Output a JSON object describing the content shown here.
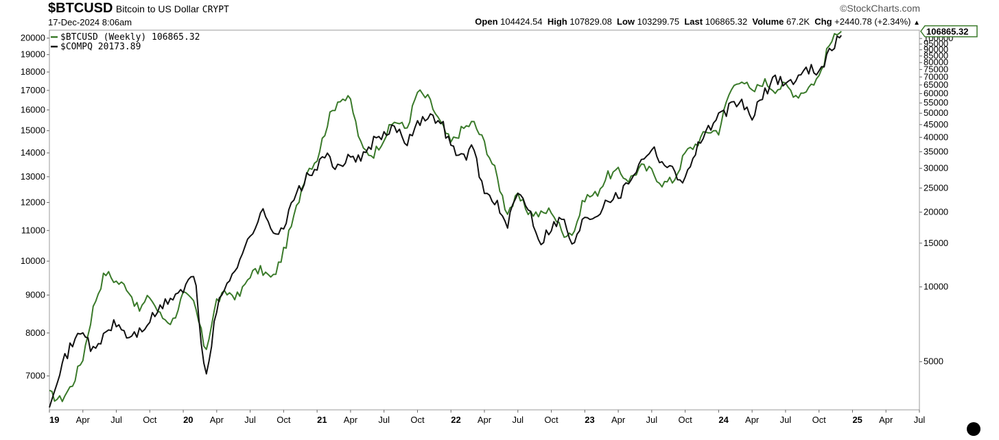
{
  "header": {
    "symbol": "$BTCUSD",
    "name": "Bitcoin to US Dollar",
    "exchange": "CRYPT",
    "date": "17-Dec-2024 8:06am",
    "brand": "©StockCharts.com",
    "open_label": "Open",
    "open_value": "104424.54",
    "high_label": "High",
    "high_value": "107829.08",
    "low_label": "Low",
    "low_value": "103299.75",
    "last_label": "Last",
    "last_value": "106865.32",
    "volume_label": "Volume",
    "volume_value": "67.2K",
    "chg_label": "Chg",
    "chg_value": "+2440.78 (+2.34%)",
    "chg_arrow": "▲"
  },
  "legend": [
    {
      "text": "$BTCUSD (Weekly) 106865.32",
      "color": "#3a7a2a"
    },
    {
      "text": "$COMPQ 20173.89",
      "color": "#111111"
    }
  ],
  "last_badge": "106865.32",
  "colors": {
    "btc": "#3a7a2a",
    "compq": "#111111",
    "axis": "#999999"
  },
  "chart_data": {
    "type": "line",
    "scale": "log",
    "grid": false,
    "legend_position": "top-left",
    "x_ticks": [
      "19",
      "Apr",
      "Jul",
      "Oct",
      "20",
      "Apr",
      "Jul",
      "Oct",
      "21",
      "Apr",
      "Jul",
      "Oct",
      "22",
      "Apr",
      "Jul",
      "Oct",
      "23",
      "Apr",
      "Jul",
      "Oct",
      "24",
      "Apr",
      "Jul",
      "Oct",
      "25",
      "Apr",
      "Jul"
    ],
    "x_range": [
      "2019-01",
      "2025-07"
    ],
    "left_axis": {
      "series": "$COMPQ",
      "ticks": [
        7000,
        8000,
        9000,
        10000,
        11000,
        12000,
        13000,
        14000,
        15000,
        16000,
        17000,
        18000,
        19000,
        20000
      ],
      "range": [
        6300,
        20500
      ]
    },
    "right_axis": {
      "series": "$BTCUSD",
      "ticks": [
        5000,
        10000,
        15000,
        20000,
        25000,
        30000,
        35000,
        40000,
        45000,
        50000,
        55000,
        60000,
        65000,
        70000,
        75000,
        80000,
        85000,
        90000,
        95000,
        100000
      ],
      "range": [
        3200,
        108000
      ]
    },
    "series": [
      {
        "name": "$BTCUSD (Weekly)",
        "axis": "right",
        "points": [
          [
            "2019-01",
            3700
          ],
          [
            "2019-02",
            3500
          ],
          [
            "2019-03",
            4000
          ],
          [
            "2019-04",
            5200
          ],
          [
            "2019-05",
            8500
          ],
          [
            "2019-06",
            11500
          ],
          [
            "2019-07",
            10500
          ],
          [
            "2019-08",
            10000
          ],
          [
            "2019-09",
            8000
          ],
          [
            "2019-10",
            9200
          ],
          [
            "2019-11",
            7600
          ],
          [
            "2019-12",
            7200
          ],
          [
            "2020-01",
            9300
          ],
          [
            "2020-02",
            8600
          ],
          [
            "2020-03",
            5500
          ],
          [
            "2020-04",
            8800
          ],
          [
            "2020-05",
            9500
          ],
          [
            "2020-06",
            9100
          ],
          [
            "2020-07",
            11300
          ],
          [
            "2020-08",
            11700
          ],
          [
            "2020-09",
            10700
          ],
          [
            "2020-10",
            13800
          ],
          [
            "2020-11",
            19500
          ],
          [
            "2020-12",
            29000
          ],
          [
            "2021-01",
            33000
          ],
          [
            "2021-02",
            47000
          ],
          [
            "2021-03",
            58000
          ],
          [
            "2021-04",
            56000
          ],
          [
            "2021-05",
            36000
          ],
          [
            "2021-06",
            34000
          ],
          [
            "2021-07",
            40000
          ],
          [
            "2021-08",
            47000
          ],
          [
            "2021-09",
            43000
          ],
          [
            "2021-10",
            61000
          ],
          [
            "2021-11",
            57000
          ],
          [
            "2021-12",
            46000
          ],
          [
            "2022-01",
            38000
          ],
          [
            "2022-02",
            43000
          ],
          [
            "2022-03",
            46000
          ],
          [
            "2022-04",
            38000
          ],
          [
            "2022-05",
            29000
          ],
          [
            "2022-06",
            20000
          ],
          [
            "2022-07",
            23000
          ],
          [
            "2022-08",
            20000
          ],
          [
            "2022-09",
            19500
          ],
          [
            "2022-10",
            20500
          ],
          [
            "2022-11",
            16500
          ],
          [
            "2022-12",
            16600
          ],
          [
            "2023-01",
            23000
          ],
          [
            "2023-02",
            23500
          ],
          [
            "2023-03",
            28000
          ],
          [
            "2023-04",
            29000
          ],
          [
            "2023-05",
            27000
          ],
          [
            "2023-06",
            30400
          ],
          [
            "2023-07",
            29200
          ],
          [
            "2023-08",
            26000
          ],
          [
            "2023-09",
            27000
          ],
          [
            "2023-10",
            34500
          ],
          [
            "2023-11",
            37700
          ],
          [
            "2023-12",
            42500
          ],
          [
            "2024-01",
            42500
          ],
          [
            "2024-02",
            61000
          ],
          [
            "2024-03",
            70000
          ],
          [
            "2024-04",
            60000
          ],
          [
            "2024-05",
            67500
          ],
          [
            "2024-06",
            62700
          ],
          [
            "2024-07",
            64600
          ],
          [
            "2024-08",
            59000
          ],
          [
            "2024-09",
            63300
          ],
          [
            "2024-10",
            70200
          ],
          [
            "2024-11",
            96400
          ],
          [
            "2024-12",
            106865
          ]
        ]
      },
      {
        "name": "$COMPQ",
        "axis": "left",
        "points": [
          [
            "2019-01",
            6450
          ],
          [
            "2019-02",
            7200
          ],
          [
            "2019-03",
            7700
          ],
          [
            "2019-04",
            8100
          ],
          [
            "2019-05",
            7500
          ],
          [
            "2019-06",
            8000
          ],
          [
            "2019-07",
            8250
          ],
          [
            "2019-08",
            7900
          ],
          [
            "2019-09",
            8000
          ],
          [
            "2019-10",
            8300
          ],
          [
            "2019-11",
            8650
          ],
          [
            "2019-12",
            8950
          ],
          [
            "2020-01",
            9150
          ],
          [
            "2020-02",
            9600
          ],
          [
            "2020-03",
            6900
          ],
          [
            "2020-04",
            8600
          ],
          [
            "2020-05",
            9400
          ],
          [
            "2020-06",
            10050
          ],
          [
            "2020-07",
            10750
          ],
          [
            "2020-08",
            11700
          ],
          [
            "2020-09",
            11000
          ],
          [
            "2020-10",
            11100
          ],
          [
            "2020-11",
            12200
          ],
          [
            "2020-12",
            12900
          ],
          [
            "2021-01",
            13400
          ],
          [
            "2021-02",
            13900
          ],
          [
            "2021-03",
            13200
          ],
          [
            "2021-04",
            13950
          ],
          [
            "2021-05",
            13700
          ],
          [
            "2021-06",
            14500
          ],
          [
            "2021-07",
            14700
          ],
          [
            "2021-08",
            15250
          ],
          [
            "2021-09",
            14450
          ],
          [
            "2021-10",
            15500
          ],
          [
            "2021-11",
            15550
          ],
          [
            "2021-12",
            15650
          ],
          [
            "2022-01",
            14300
          ],
          [
            "2022-02",
            13750
          ],
          [
            "2022-03",
            14220
          ],
          [
            "2022-04",
            12350
          ],
          [
            "2022-05",
            12100
          ],
          [
            "2022-06",
            11050
          ],
          [
            "2022-07",
            12400
          ],
          [
            "2022-08",
            11800
          ],
          [
            "2022-09",
            10600
          ],
          [
            "2022-10",
            11150
          ],
          [
            "2022-11",
            11450
          ],
          [
            "2022-12",
            10450
          ],
          [
            "2023-01",
            11550
          ],
          [
            "2023-02",
            11500
          ],
          [
            "2023-03",
            12200
          ],
          [
            "2023-04",
            12200
          ],
          [
            "2023-05",
            12900
          ],
          [
            "2023-06",
            13600
          ],
          [
            "2023-07",
            14300
          ],
          [
            "2023-08",
            13600
          ],
          [
            "2023-09",
            13200
          ],
          [
            "2023-10",
            12850
          ],
          [
            "2023-11",
            14250
          ],
          [
            "2023-12",
            15000
          ],
          [
            "2024-01",
            15600
          ],
          [
            "2024-02",
            16100
          ],
          [
            "2024-03",
            16400
          ],
          [
            "2024-04",
            15650
          ],
          [
            "2024-05",
            16700
          ],
          [
            "2024-06",
            17700
          ],
          [
            "2024-07",
            17400
          ],
          [
            "2024-08",
            17600
          ],
          [
            "2024-09",
            18200
          ],
          [
            "2024-10",
            18100
          ],
          [
            "2024-11",
            19200
          ],
          [
            "2024-12",
            20173
          ]
        ]
      }
    ]
  }
}
